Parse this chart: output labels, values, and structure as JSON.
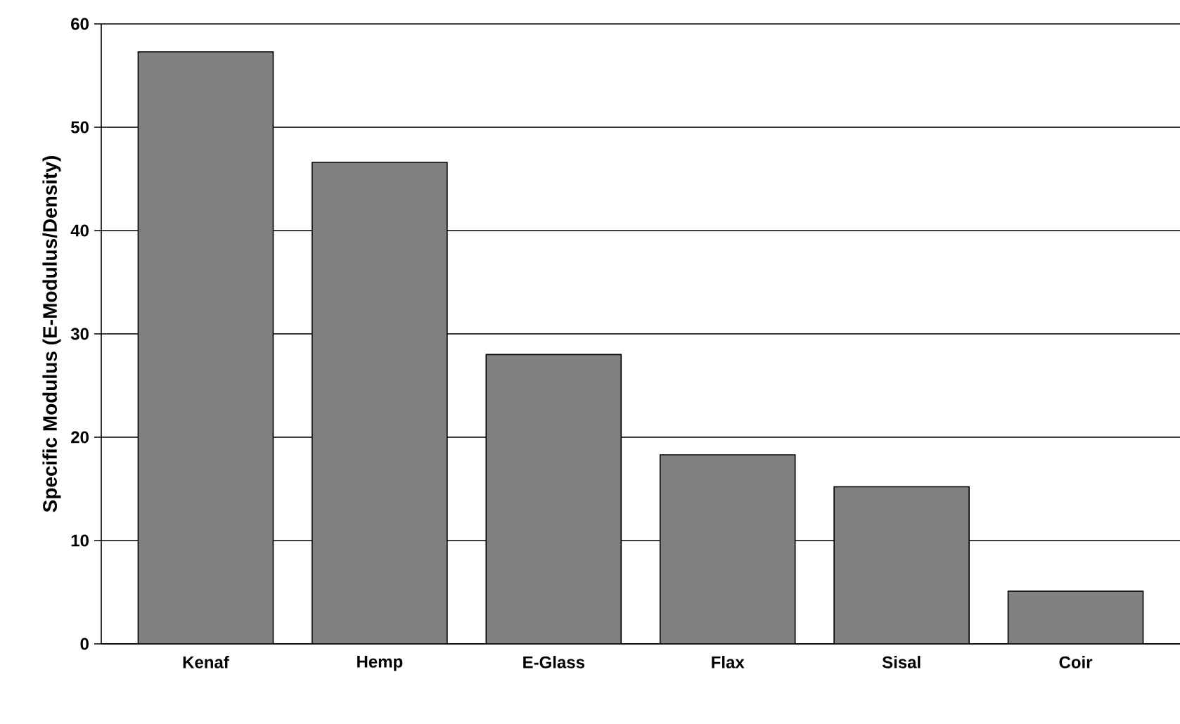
{
  "chart_data": {
    "type": "bar",
    "ylabel": "Specific Modulus (E-Modulus/Density)",
    "categories": [
      "Kenaf",
      "Hemp",
      "E-Glass",
      "Flax",
      "Sisal",
      "Coir"
    ],
    "values": [
      57.3,
      46.6,
      28.0,
      18.3,
      15.2,
      5.1
    ],
    "color": "#808080",
    "ylim": [
      0,
      60
    ],
    "yticks": [
      0,
      10,
      20,
      30,
      40,
      50,
      60
    ],
    "grid": "y"
  }
}
